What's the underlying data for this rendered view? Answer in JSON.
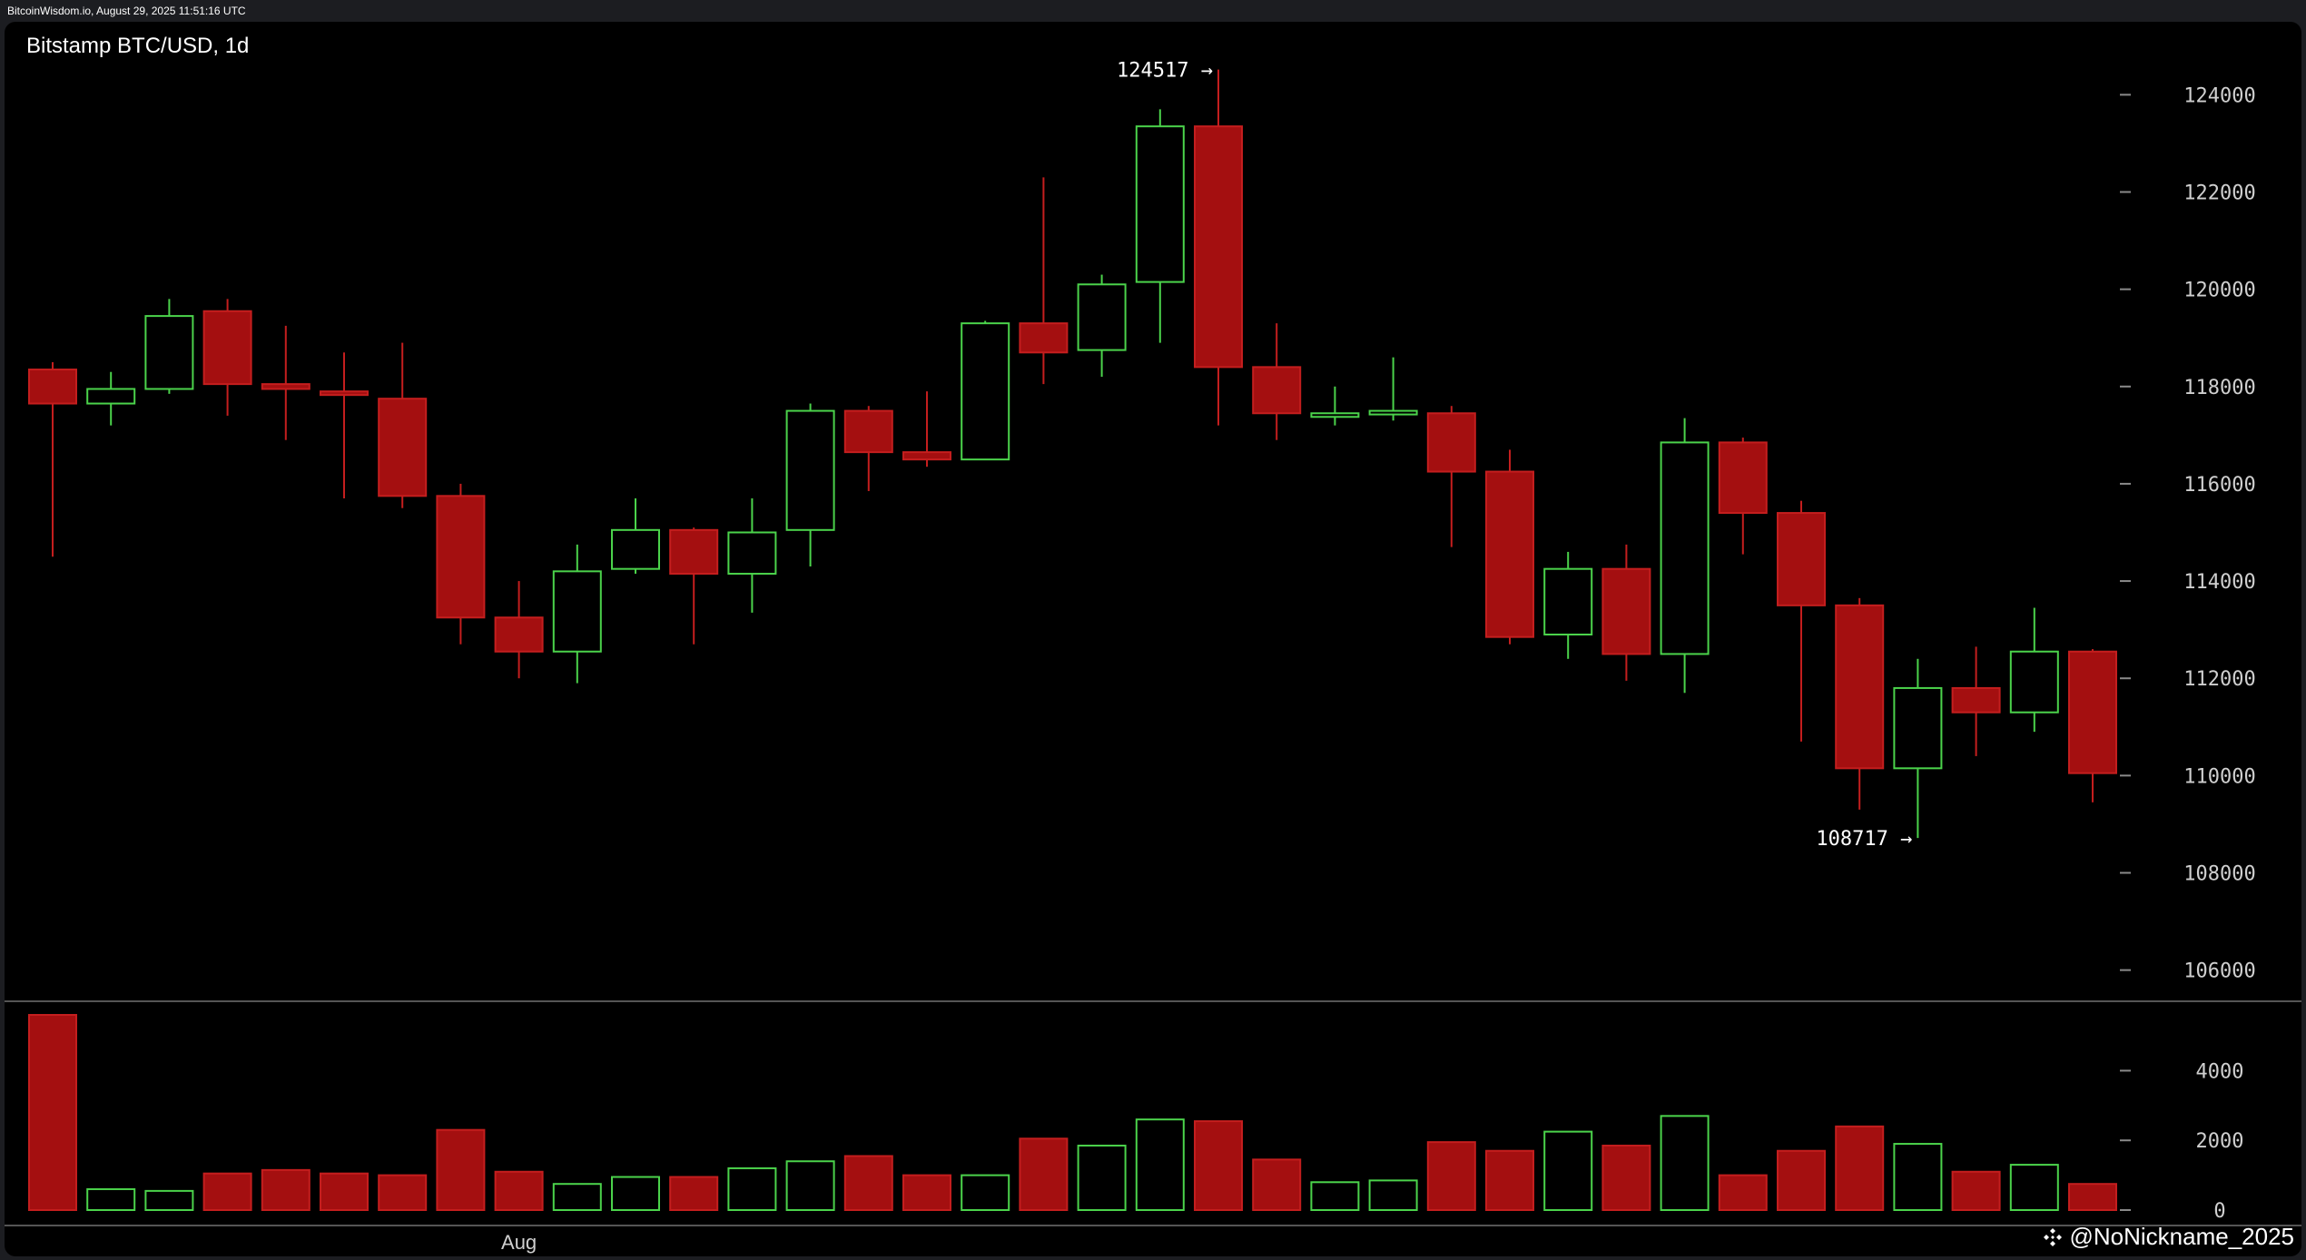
{
  "header": {
    "source_line": "BitcoinWisdom.io, August 29, 2025 11:51:16 UTC"
  },
  "title": "Bitstamp BTC/USD, 1d",
  "watermark": "@NoNickname_2025",
  "colors": {
    "up": "#4bd34b",
    "down": "#c41e1e",
    "down_fill": "#a40f10",
    "background": "#000000",
    "axis_text": "#cfcfcf"
  },
  "chart_data": [
    {
      "type": "candlestick",
      "price_axis": {
        "ticks": [
          124000,
          122000,
          120000,
          118000,
          116000,
          114000,
          112000,
          110000,
          108000,
          106000
        ],
        "range": [
          104500,
          125500
        ]
      },
      "x_axis": {
        "labels": [
          {
            "index": 8,
            "text": "Aug"
          }
        ]
      },
      "annotations": [
        {
          "text": "124517 →",
          "index": 20,
          "value": 124517,
          "kind": "high"
        },
        {
          "text": "108717 →",
          "index": 32,
          "value": 108717,
          "kind": "low"
        }
      ],
      "candles": [
        {
          "open": 118350,
          "high": 118500,
          "low": 114500,
          "close": 117650
        },
        {
          "open": 117650,
          "high": 118300,
          "low": 117200,
          "close": 117950
        },
        {
          "open": 117950,
          "high": 119800,
          "low": 117850,
          "close": 119450
        },
        {
          "open": 119550,
          "high": 119800,
          "low": 117400,
          "close": 118050
        },
        {
          "open": 118050,
          "high": 119250,
          "low": 116900,
          "close": 117950
        },
        {
          "open": 117900,
          "high": 118700,
          "low": 115700,
          "close": 117850
        },
        {
          "open": 117750,
          "high": 118900,
          "low": 115500,
          "close": 115750
        },
        {
          "open": 115750,
          "high": 116000,
          "low": 112700,
          "close": 113250
        },
        {
          "open": 113250,
          "high": 114000,
          "low": 112000,
          "close": 112550
        },
        {
          "open": 112550,
          "high": 114750,
          "low": 111900,
          "close": 114200
        },
        {
          "open": 114250,
          "high": 115700,
          "low": 114150,
          "close": 115050
        },
        {
          "open": 115050,
          "high": 115100,
          "low": 112700,
          "close": 114150
        },
        {
          "open": 114150,
          "high": 115700,
          "low": 113350,
          "close": 115000
        },
        {
          "open": 115050,
          "high": 117650,
          "low": 114300,
          "close": 117500
        },
        {
          "open": 117500,
          "high": 117600,
          "low": 115850,
          "close": 116650
        },
        {
          "open": 116650,
          "high": 117900,
          "low": 116350,
          "close": 116500
        },
        {
          "open": 116500,
          "high": 119350,
          "low": 116500,
          "close": 119300
        },
        {
          "open": 119300,
          "high": 122300,
          "low": 118050,
          "close": 118700
        },
        {
          "open": 118750,
          "high": 120300,
          "low": 118200,
          "close": 120100
        },
        {
          "open": 120150,
          "high": 123700,
          "low": 118900,
          "close": 123350
        },
        {
          "open": 123350,
          "high": 124517,
          "low": 117200,
          "close": 118400
        },
        {
          "open": 118400,
          "high": 119300,
          "low": 116900,
          "close": 117450
        },
        {
          "open": 117400,
          "high": 118000,
          "low": 117200,
          "close": 117450
        },
        {
          "open": 117450,
          "high": 118600,
          "low": 117300,
          "close": 117500
        },
        {
          "open": 117450,
          "high": 117600,
          "low": 114700,
          "close": 116250
        },
        {
          "open": 116250,
          "high": 116700,
          "low": 112700,
          "close": 112850
        },
        {
          "open": 112900,
          "high": 114600,
          "low": 112400,
          "close": 114250
        },
        {
          "open": 114250,
          "high": 114750,
          "low": 111950,
          "close": 112500
        },
        {
          "open": 112500,
          "high": 117350,
          "low": 111700,
          "close": 116850
        },
        {
          "open": 116850,
          "high": 116950,
          "low": 114550,
          "close": 115400
        },
        {
          "open": 115400,
          "high": 115650,
          "low": 110700,
          "close": 113500
        },
        {
          "open": 113500,
          "high": 113650,
          "low": 109300,
          "close": 110150
        },
        {
          "open": 110150,
          "high": 112400,
          "low": 108717,
          "close": 111800
        },
        {
          "open": 111800,
          "high": 112650,
          "low": 110400,
          "close": 111300
        },
        {
          "open": 111300,
          "high": 113450,
          "low": 110900,
          "close": 112550
        },
        {
          "open": 112550,
          "high": 112600,
          "low": 109450,
          "close": 110050
        }
      ]
    },
    {
      "type": "bar",
      "name": "volume",
      "y_axis": {
        "ticks": [
          4000,
          2000,
          0
        ],
        "range": [
          0,
          5600
        ]
      },
      "values": [
        5600,
        600,
        550,
        1050,
        1150,
        1050,
        1000,
        2300,
        1100,
        750,
        950,
        950,
        1200,
        1400,
        1550,
        1000,
        1000,
        2050,
        1850,
        2600,
        2550,
        1450,
        800,
        850,
        1950,
        1700,
        2250,
        1850,
        2700,
        1000,
        1700,
        2400,
        1900,
        1100,
        1300,
        750
      ]
    }
  ]
}
